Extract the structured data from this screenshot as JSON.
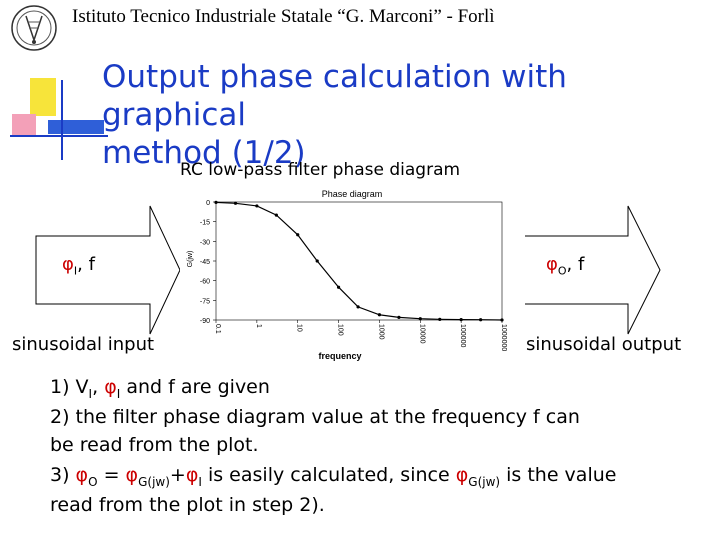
{
  "header": {
    "text": "Istituto Tecnico Industriale Statale “G. Marconi” - Forlì"
  },
  "slide": {
    "title_line1": "Output phase calculation with graphical",
    "title_line2": "method (1/2)",
    "subtitle": "RC low-pass filter phase diagram"
  },
  "inputs": {
    "phi_symbol": "φ",
    "phi_sub": "I",
    "f_suffix": ", f",
    "label": "sinusoidal input"
  },
  "outputs": {
    "phi_symbol": "φ",
    "phi_sub": "O",
    "f_suffix": ", f",
    "label": "sinusoidal output"
  },
  "steps": {
    "s1_a": "1) V",
    "s1_sub1": "I",
    "s1_b": ", ",
    "s1_phi": "φ",
    "s1_sub2": "I",
    "s1_c": " and f are given",
    "s2_line1": "2) the filter phase diagram value at the frequency f can",
    "s2_line2": "be read from the plot.",
    "s3_a": "3) ",
    "s3_phiO": "φ",
    "s3_subO": "O",
    "s3_eq": " = ",
    "s3_phiG": "φ",
    "s3_subG": "G(jw)",
    "s3_plus": "+",
    "s3_phiI": "φ",
    "s3_subI": "I",
    "s3_b": " is easily calculated, since ",
    "s3_phiG2": "φ",
    "s3_subG2": "G(jw)",
    "s3_c": " is the value",
    "s3_line2": "read from the plot in step 2)."
  },
  "colors": {
    "title": "#1a3bc5",
    "phi": "#cc0000",
    "plot_line": "#000000",
    "deco_yellow": "#f7e43a",
    "deco_blue": "#2f5fd8",
    "deco_pink": "#f3a0b8"
  },
  "chart_data": {
    "type": "line",
    "title": "Phase diagram",
    "xlabel": "frequency",
    "ylabel": "G(jw)",
    "xscale": "log",
    "x_tick_labels": [
      "0.1",
      "1",
      "10",
      "100",
      "1000",
      "10000",
      "100000",
      "1000000"
    ],
    "y_tick_labels": [
      "0",
      "-15",
      "-30",
      "-45",
      "-60",
      "-75",
      "-90"
    ],
    "ylim": [
      -90,
      0
    ],
    "xlim": [
      0.1,
      1000000
    ],
    "grid": false,
    "series": [
      {
        "values_x": [
          0.1,
          0.3,
          1,
          3,
          10,
          30,
          100,
          300,
          1000,
          3000,
          10000,
          30000,
          100000,
          300000,
          1000000
        ],
        "values_y": [
          -0.3,
          -1,
          -3,
          -10,
          -25,
          -45,
          -65,
          -80,
          -86,
          -88,
          -89,
          -89.5,
          -89.7,
          -89.8,
          -90
        ]
      }
    ]
  }
}
